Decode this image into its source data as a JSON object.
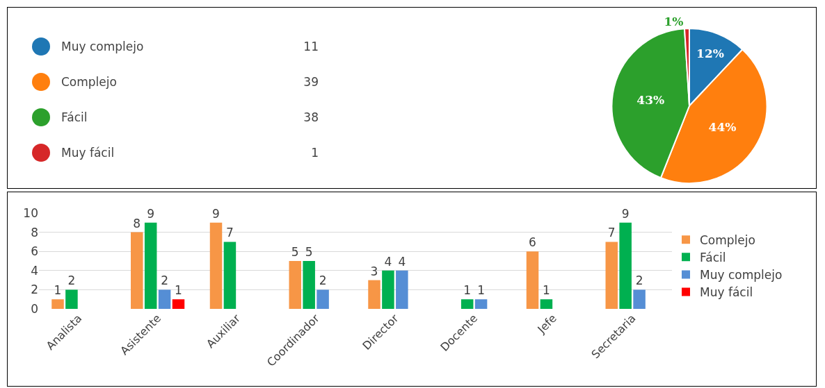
{
  "chart_data": [
    {
      "type": "pie",
      "categories": [
        "Muy complejo",
        "Complejo",
        "Fácil",
        "Muy fácil"
      ],
      "values": [
        12,
        44,
        43,
        1
      ],
      "annotations": [
        "11",
        "39",
        "38",
        "1"
      ],
      "colors": [
        "#1f77b4",
        "#ff7f0e",
        "#2ca02c",
        "#d62728"
      ],
      "value_labels": [
        "12%",
        "44%",
        "43%",
        "1%"
      ],
      "legend": "left"
    },
    {
      "type": "bar",
      "categories": [
        "Analista",
        "Asistente",
        "Auxiliar",
        "Coordinador",
        "Director",
        "Docente",
        "Jefe",
        "Secretaria"
      ],
      "series": [
        {
          "name": "Complejo",
          "color": "#f79646",
          "values": [
            1,
            8,
            9,
            5,
            3,
            null,
            6,
            7
          ]
        },
        {
          "name": "Fácil",
          "color": "#00b050",
          "values": [
            2,
            9,
            7,
            5,
            4,
            1,
            1,
            9
          ]
        },
        {
          "name": "Muy complejo",
          "color": "#558ed5",
          "values": [
            null,
            2,
            null,
            2,
            4,
            1,
            null,
            2
          ]
        },
        {
          "name": "Muy fácil",
          "color": "#ff0000",
          "values": [
            null,
            1,
            null,
            null,
            null,
            null,
            null,
            null
          ]
        }
      ],
      "ylim": [
        0,
        10
      ],
      "yticks": [
        0,
        2,
        4,
        6,
        8,
        10
      ],
      "grid": "y",
      "legend": "right",
      "data_labels": true
    }
  ]
}
